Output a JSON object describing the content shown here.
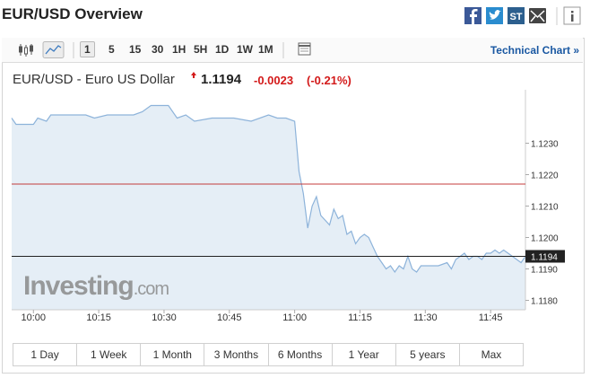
{
  "header": {
    "title": "EUR/USD Overview",
    "st_icon": "ST"
  },
  "toolbar": {
    "intervals": [
      "1",
      "5",
      "15",
      "30",
      "1H",
      "5H",
      "1D",
      "1W",
      "1M"
    ],
    "selected": 0,
    "link": "Technical Chart »"
  },
  "quote": {
    "name": "EUR/USD - Euro US Dollar",
    "price": "1.1194",
    "change": "-0.0023",
    "change_percent": "(-0.21%)"
  },
  "watermark": {
    "brand": "Investing",
    "suffix": ".com"
  },
  "chart_data": {
    "type": "area",
    "x": [
      595,
      596,
      600,
      601,
      603,
      604,
      606,
      608,
      610,
      612,
      614,
      617,
      619,
      621,
      623,
      625,
      627,
      629,
      631,
      633,
      635,
      637,
      641,
      646,
      650,
      654,
      656,
      658,
      660,
      661,
      662,
      663,
      664,
      665,
      666,
      668,
      669,
      670,
      671,
      672,
      673,
      674,
      675,
      676,
      677,
      678,
      679,
      680,
      681,
      682,
      683,
      684,
      685,
      686,
      687,
      688,
      689,
      691,
      693,
      695,
      696,
      697,
      698,
      699,
      700,
      701,
      702,
      703,
      704,
      705,
      706,
      707,
      708,
      709,
      711,
      712,
      713
    ],
    "series": [
      {
        "color": "#8db3da",
        "fill": "#e5eef6",
        "values": [
          1.1238,
          1.1236,
          1.1236,
          1.1238,
          1.1237,
          1.1239,
          1.1239,
          1.1239,
          1.1239,
          1.1239,
          1.1238,
          1.1239,
          1.1239,
          1.1239,
          1.1239,
          1.124,
          1.1242,
          1.1242,
          1.1242,
          1.1238,
          1.1239,
          1.1237,
          1.1238,
          1.1238,
          1.1237,
          1.1239,
          1.1238,
          1.1238,
          1.1237,
          1.1221,
          1.1214,
          1.1203,
          1.121,
          1.1213,
          1.1207,
          1.1204,
          1.1209,
          1.1206,
          1.1207,
          1.1201,
          1.1202,
          1.1198,
          1.12,
          1.1201,
          1.12,
          1.1197,
          1.1194,
          1.1192,
          1.119,
          1.1191,
          1.1189,
          1.1191,
          1.119,
          1.1194,
          1.119,
          1.1189,
          1.1191,
          1.1191,
          1.1191,
          1.1192,
          1.119,
          1.1193,
          1.1194,
          1.1195,
          1.1193,
          1.1194,
          1.1194,
          1.1193,
          1.1195,
          1.1195,
          1.1196,
          1.1195,
          1.1196,
          1.1195,
          1.1193,
          1.1192,
          1.1194
        ]
      }
    ],
    "xlim": [
      595,
      713
    ],
    "xticks": [
      {
        "value": 600,
        "label": "10:00"
      },
      {
        "value": 615,
        "label": "10:15"
      },
      {
        "value": 630,
        "label": "10:30"
      },
      {
        "value": 645,
        "label": "10:45"
      },
      {
        "value": 660,
        "label": "11:00"
      },
      {
        "value": 675,
        "label": "11:15"
      },
      {
        "value": 690,
        "label": "11:30"
      },
      {
        "value": 705,
        "label": "11:45"
      }
    ],
    "ylim": [
      1.1177,
      1.1247
    ],
    "yticks": [
      {
        "value": 1.118,
        "label": "1.1180"
      },
      {
        "value": 1.119,
        "label": "1.1190"
      },
      {
        "value": 1.12,
        "label": "1.1200"
      },
      {
        "value": 1.121,
        "label": "1.1210"
      },
      {
        "value": 1.122,
        "label": "1.1220"
      },
      {
        "value": 1.123,
        "label": "1.1230"
      }
    ],
    "reference_lines": [
      {
        "value": 1.1217,
        "color": "#c43c3c"
      },
      {
        "value": 1.1194,
        "label": "1.1194",
        "color": "#222222"
      }
    ]
  },
  "ranges": [
    "1 Day",
    "1 Week",
    "1 Month",
    "3 Months",
    "6 Months",
    "1 Year",
    "5 years",
    "Max"
  ]
}
